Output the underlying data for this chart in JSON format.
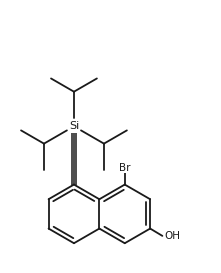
{
  "background_color": "#ffffff",
  "line_color": "#1a1a1a",
  "line_width": 1.3,
  "figsize": [
    2.21,
    2.73
  ],
  "dpi": 100,
  "Si_label": "Si",
  "Br_label": "Br",
  "OH_label": "OH",
  "font_size": 7.5
}
